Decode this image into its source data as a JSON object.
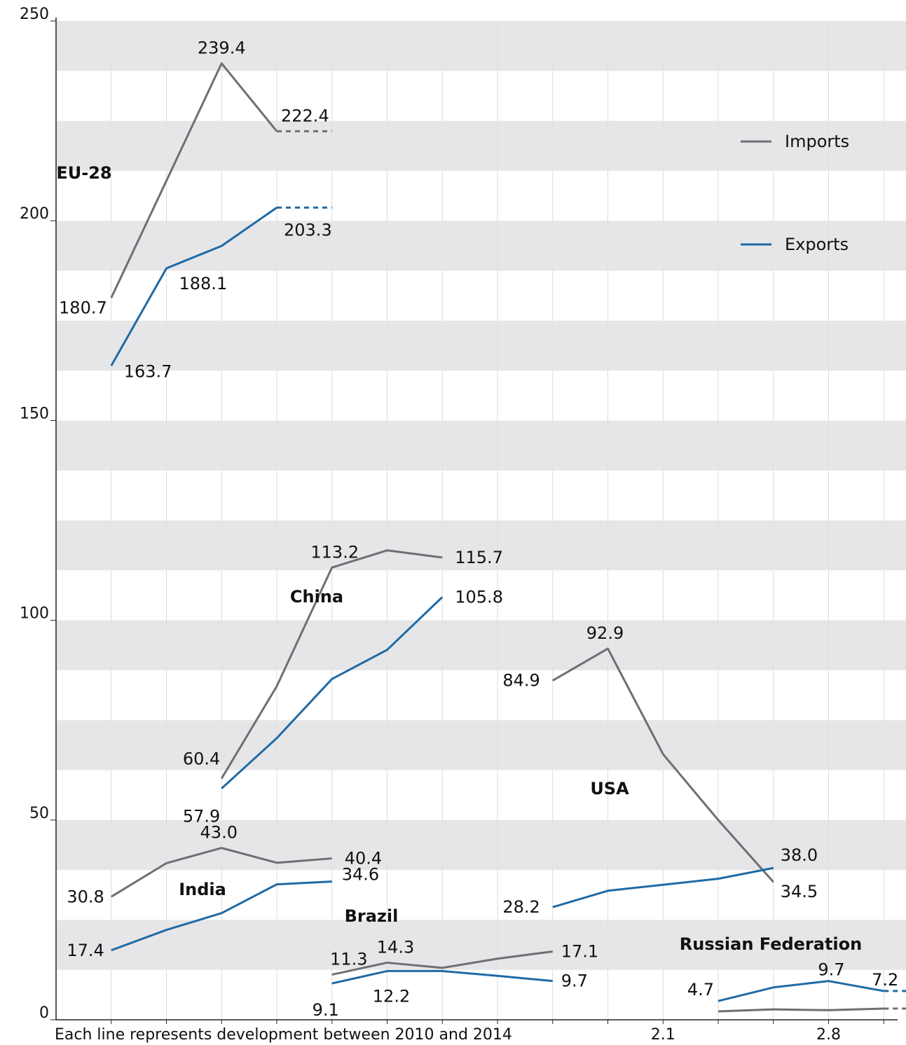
{
  "chart_data": {
    "type": "line",
    "ylim": [
      0,
      250
    ],
    "y_ticks": [
      "0",
      "50",
      "100",
      "150",
      "200",
      "250"
    ],
    "x_note": "Each line represents development between 2010 and 2014",
    "x_tick_labels": [
      "2.1",
      "2.8"
    ],
    "grid": "horizontal bands",
    "legend_position": "top-right",
    "legend": [
      {
        "name": "Imports",
        "color": "#6f6f73"
      },
      {
        "name": "Exports",
        "color": "#1f6aa5"
      }
    ],
    "groups": [
      {
        "name": "EU-28",
        "start_slot": 1,
        "imports": [
          180.7,
          210.0,
          239.4,
          222.4,
          222.4
        ],
        "exports": [
          163.7,
          188.1,
          193.7,
          203.3,
          203.3
        ],
        "dashed_last": true,
        "labels": {
          "imports": [
            "180.7",
            "",
            "239.4",
            "222.4",
            ""
          ],
          "exports": [
            "163.7",
            "188.1",
            "",
            "203.3",
            ""
          ]
        }
      },
      {
        "name": "China",
        "start_slot": 3,
        "imports": [
          60.4,
          83.5,
          113.2,
          117.5,
          115.7
        ],
        "exports": [
          57.9,
          70.5,
          85.3,
          92.6,
          105.8
        ],
        "dashed_last": false,
        "labels": {
          "imports": [
            "60.4",
            "",
            "113.2",
            "",
            "115.7"
          ],
          "exports": [
            "57.9",
            "",
            "",
            "",
            "105.8"
          ]
        }
      },
      {
        "name": "India",
        "start_slot": 1,
        "imports": [
          30.8,
          39.2,
          43.0,
          39.3,
          40.4
        ],
        "exports": [
          17.4,
          22.5,
          26.7,
          33.9,
          34.6
        ],
        "dashed_last": false,
        "labels": {
          "imports": [
            "30.8",
            "",
            "43.0",
            "",
            "40.4"
          ],
          "exports": [
            "17.4",
            "",
            "",
            "",
            "34.6"
          ]
        }
      },
      {
        "name": "Brazil",
        "start_slot": 5,
        "imports": [
          11.3,
          14.3,
          13.0,
          15.3,
          17.1
        ],
        "exports": [
          9.1,
          12.2,
          12.2,
          11.0,
          9.7
        ],
        "dashed_last": false,
        "labels": {
          "imports": [
            "11.3",
            "14.3",
            "",
            "",
            "17.1"
          ],
          "exports": [
            "9.1",
            "12.2",
            "",
            "",
            "9.7"
          ]
        }
      },
      {
        "name": "USA",
        "start_slot": 9,
        "imports": [
          84.9,
          92.9,
          66.5,
          50.0,
          34.5
        ],
        "exports": [
          28.2,
          32.3,
          33.8,
          35.3,
          38.0
        ],
        "dashed_last": false,
        "labels": {
          "imports": [
            "84.9",
            "92.9",
            "",
            "",
            "34.5"
          ],
          "exports": [
            "28.2",
            "",
            "",
            "",
            "38.0"
          ]
        }
      },
      {
        "name": "Russian Federation",
        "start_slot": 12,
        "imports": [
          2.1,
          2.6,
          2.4,
          2.8,
          2.8
        ],
        "exports": [
          4.7,
          8.1,
          9.7,
          7.2,
          7.2
        ],
        "dashed_last": true,
        "labels": {
          "imports": [
            "",
            "",
            "",
            "",
            ""
          ],
          "exports": [
            "4.7",
            "",
            "9.7",
            "7.2",
            ""
          ]
        }
      }
    ]
  }
}
